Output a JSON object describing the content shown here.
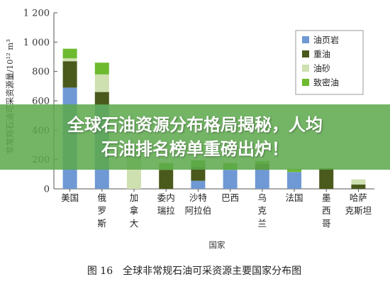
{
  "chart_data": {
    "type": "bar",
    "stacked": true,
    "ylabel": "非常规石油可采资源量/10¹² m³",
    "xlabel": "国家",
    "ylim": [
      0,
      1200
    ],
    "yticks": [
      "0",
      "200",
      "400",
      "600",
      "800",
      "1 000",
      "1 200"
    ],
    "categories": [
      [
        "美国"
      ],
      [
        "俄",
        "罗",
        "斯"
      ],
      [
        "加",
        "拿",
        "大"
      ],
      [
        "委内",
        "瑞拉"
      ],
      [
        "沙特",
        "阿拉伯"
      ],
      [
        "巴西"
      ],
      [
        "乌",
        "克",
        "兰"
      ],
      [
        "法国"
      ],
      [
        "墨",
        "西",
        "哥"
      ],
      [
        "哈萨",
        "克斯坦"
      ]
    ],
    "series": [
      {
        "name": "油页岩",
        "color": "#6f99d4",
        "values": [
          690,
          570,
          0,
          0,
          55,
          130,
          130,
          115,
          0,
          0
        ]
      },
      {
        "name": "重油",
        "color": "#4a5a1c",
        "values": [
          180,
          90,
          0,
          130,
          95,
          0,
          40,
          0,
          140,
          30
        ]
      },
      {
        "name": "油砂",
        "color": "#cfe0b0",
        "values": [
          20,
          120,
          300,
          0,
          0,
          0,
          0,
          0,
          0,
          35
        ]
      },
      {
        "name": "致密油",
        "color": "#6dba2e",
        "values": [
          65,
          80,
          0,
          45,
          45,
          45,
          20,
          20,
          0,
          0
        ]
      }
    ],
    "legend_position": "top-right",
    "caption": "图 16　全球非常规石油可采资源主要国家分布图"
  },
  "banner": {
    "line1": "全球石油资源分布格局揭秘，人均",
    "line2": "石油排名榜单重磅出炉！"
  }
}
